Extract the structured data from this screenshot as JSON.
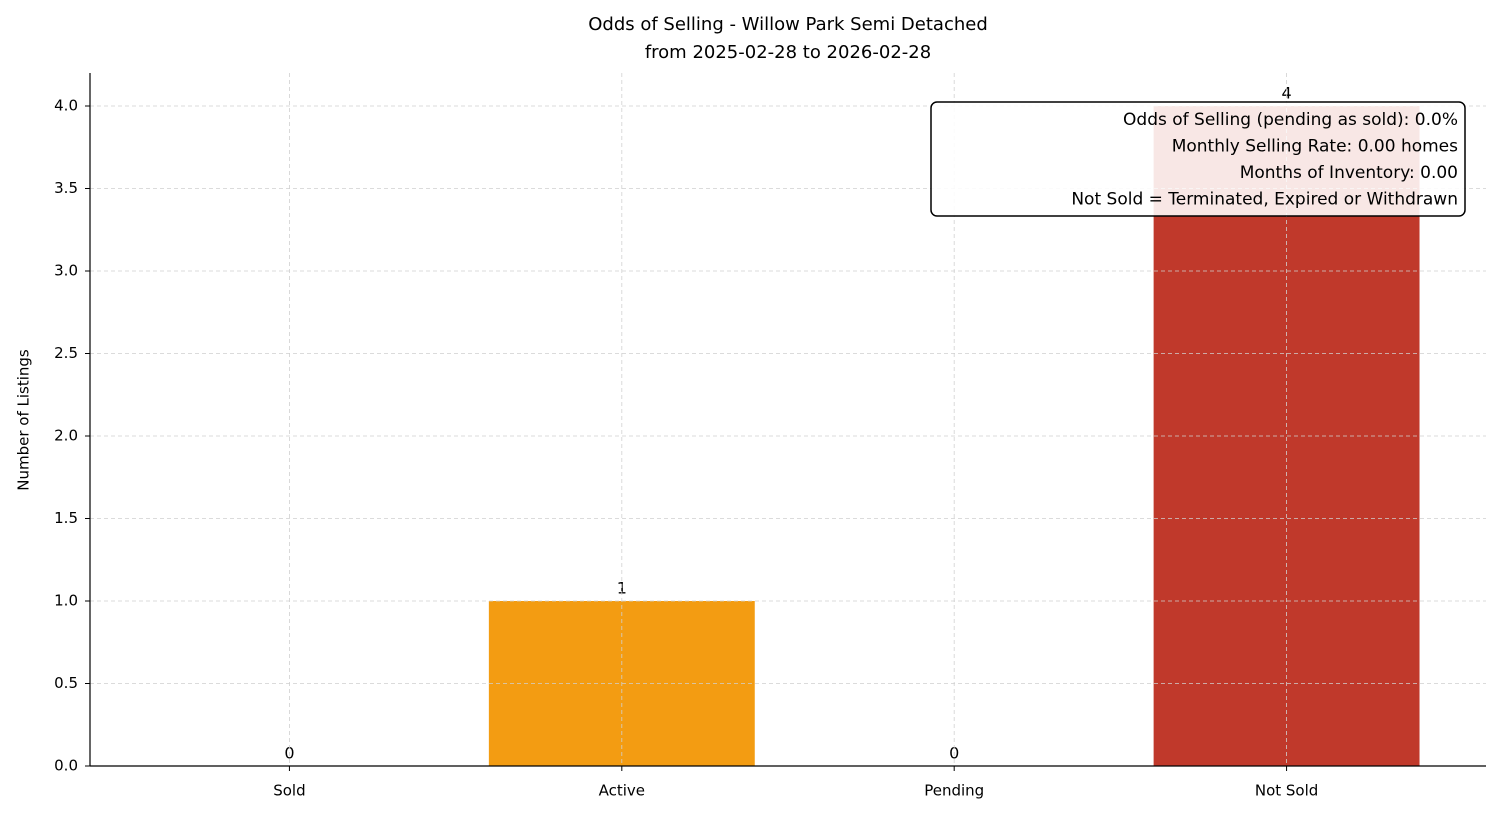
{
  "chart_data": {
    "type": "bar",
    "title": [
      "Odds of Selling - Willow Park Semi Detached",
      "from 2025-02-28 to 2026-02-28"
    ],
    "y_label": "Number of Listings",
    "categories": [
      "Sold",
      "Active",
      "Pending",
      "Not Sold"
    ],
    "values": [
      0,
      1,
      0,
      4
    ],
    "colors": [
      "#27ae60",
      "#f39c12",
      "#3498db",
      "#c0392b"
    ],
    "ylim": [
      0,
      4.2
    ],
    "yticks": [
      {
        "value": 0,
        "label": "0.0"
      },
      {
        "value": 0.5,
        "label": "0.5"
      },
      {
        "value": 1,
        "label": "1.0"
      },
      {
        "value": 1.5,
        "label": "1.5"
      },
      {
        "value": 2,
        "label": "2.0"
      },
      {
        "value": 2.5,
        "label": "2.5"
      },
      {
        "value": 3,
        "label": "3.0"
      },
      {
        "value": 3.5,
        "label": "3.5"
      },
      {
        "value": 4,
        "label": "4.0"
      }
    ],
    "grid": true,
    "annotation": [
      "Odds of Selling (pending as sold): 0.0%",
      "Monthly Selling Rate: 0.00 homes",
      "Months of Inventory: 0.00",
      "Not Sold = Terminated, Expired or Withdrawn"
    ]
  }
}
